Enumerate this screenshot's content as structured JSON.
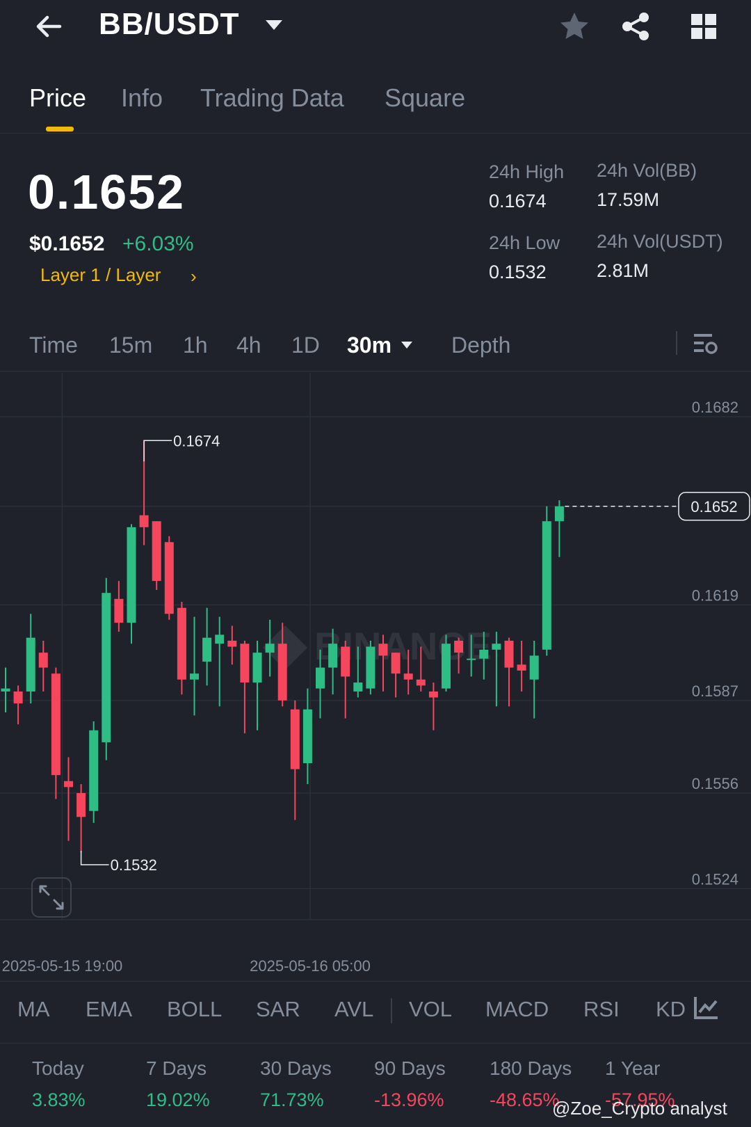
{
  "header": {
    "pair": "BB/USDT",
    "icons": [
      "back-arrow-icon",
      "caret-down-icon",
      "star-icon",
      "share-icon",
      "grid-icon"
    ]
  },
  "tabs": [
    {
      "label": "Price",
      "active": true
    },
    {
      "label": "Info",
      "active": false
    },
    {
      "label": "Trading Data",
      "active": false
    },
    {
      "label": "Square",
      "active": false
    }
  ],
  "ticker": {
    "last_price": "0.1652",
    "usd_price": "$0.1652",
    "change_pct": "+6.03%",
    "category": "Layer 1 / Layer",
    "category_arrow": "›",
    "high_label": "24h High",
    "high_value": "0.1674",
    "low_label": "24h Low",
    "low_value": "0.1532",
    "vol_base_label": "24h Vol(BB)",
    "vol_base_value": "17.59M",
    "vol_quote_label": "24h Vol(USDT)",
    "vol_quote_value": "2.81M"
  },
  "timeframes": {
    "items": [
      "Time",
      "15m",
      "1h",
      "4h",
      "1D"
    ],
    "active": "30m",
    "depth": "Depth"
  },
  "chart_data": {
    "type": "candlestick",
    "interval": "30m",
    "y_ticks": [
      "0.1682",
      "0.1652",
      "0.1619",
      "0.1587",
      "0.1556",
      "0.1524"
    ],
    "ylim": [
      0.1515,
      0.1692
    ],
    "x_ticks": [
      "2025-05-15 19:00",
      "2025-05-16 05:00"
    ],
    "high_marker": "0.1674",
    "low_marker": "0.1532",
    "current_price_tag": "0.1652",
    "watermark": "BINANCE",
    "colors": {
      "up": "#2ebd85",
      "down": "#f6465d",
      "grid": "#2b2f38",
      "axis_text": "#848e9c"
    },
    "candles": [
      {
        "o": 0.159,
        "h": 0.1598,
        "l": 0.1583,
        "c": 0.1591
      },
      {
        "o": 0.159,
        "h": 0.1592,
        "l": 0.1579,
        "c": 0.1586
      },
      {
        "o": 0.159,
        "h": 0.1616,
        "l": 0.1586,
        "c": 0.1608
      },
      {
        "o": 0.1603,
        "h": 0.1607,
        "l": 0.159,
        "c": 0.1598
      },
      {
        "o": 0.1596,
        "h": 0.1598,
        "l": 0.1554,
        "c": 0.1562
      },
      {
        "o": 0.156,
        "h": 0.1568,
        "l": 0.154,
        "c": 0.1558
      },
      {
        "o": 0.1556,
        "h": 0.1559,
        "l": 0.1536,
        "c": 0.1548
      },
      {
        "o": 0.155,
        "h": 0.158,
        "l": 0.1546,
        "c": 0.1577
      },
      {
        "o": 0.1573,
        "h": 0.1628,
        "l": 0.1567,
        "c": 0.1623
      },
      {
        "o": 0.1621,
        "h": 0.1627,
        "l": 0.161,
        "c": 0.1613
      },
      {
        "o": 0.1613,
        "h": 0.1646,
        "l": 0.1606,
        "c": 0.1645
      },
      {
        "o": 0.1649,
        "h": 0.1674,
        "l": 0.1639,
        "c": 0.1645
      },
      {
        "o": 0.1647,
        "h": 0.1647,
        "l": 0.1624,
        "c": 0.1627
      },
      {
        "o": 0.164,
        "h": 0.1642,
        "l": 0.1614,
        "c": 0.1616
      },
      {
        "o": 0.1618,
        "h": 0.162,
        "l": 0.1589,
        "c": 0.1594
      },
      {
        "o": 0.1594,
        "h": 0.1615,
        "l": 0.1582,
        "c": 0.1596
      },
      {
        "o": 0.16,
        "h": 0.1618,
        "l": 0.1592,
        "c": 0.1608
      },
      {
        "o": 0.1606,
        "h": 0.1615,
        "l": 0.1585,
        "c": 0.1609
      },
      {
        "o": 0.1607,
        "h": 0.1612,
        "l": 0.1599,
        "c": 0.1605
      },
      {
        "o": 0.1606,
        "h": 0.1607,
        "l": 0.1576,
        "c": 0.1593
      },
      {
        "o": 0.1593,
        "h": 0.1607,
        "l": 0.1577,
        "c": 0.1603
      },
      {
        "o": 0.1603,
        "h": 0.1614,
        "l": 0.1595,
        "c": 0.1606
      },
      {
        "o": 0.1606,
        "h": 0.1613,
        "l": 0.1585,
        "c": 0.1587
      },
      {
        "o": 0.1584,
        "h": 0.1587,
        "l": 0.1547,
        "c": 0.1564
      },
      {
        "o": 0.1566,
        "h": 0.1591,
        "l": 0.1559,
        "c": 0.1584
      },
      {
        "o": 0.1591,
        "h": 0.1604,
        "l": 0.1581,
        "c": 0.1598
      },
      {
        "o": 0.1598,
        "h": 0.1611,
        "l": 0.1589,
        "c": 0.1606
      },
      {
        "o": 0.1605,
        "h": 0.1607,
        "l": 0.1581,
        "c": 0.1595
      },
      {
        "o": 0.159,
        "h": 0.1605,
        "l": 0.1588,
        "c": 0.1593
      },
      {
        "o": 0.1591,
        "h": 0.1607,
        "l": 0.1589,
        "c": 0.1605
      },
      {
        "o": 0.1606,
        "h": 0.1609,
        "l": 0.159,
        "c": 0.1602
      },
      {
        "o": 0.1603,
        "h": 0.1603,
        "l": 0.1588,
        "c": 0.1596
      },
      {
        "o": 0.1596,
        "h": 0.1604,
        "l": 0.1589,
        "c": 0.1594
      },
      {
        "o": 0.1594,
        "h": 0.1605,
        "l": 0.159,
        "c": 0.1592
      },
      {
        "o": 0.159,
        "h": 0.1593,
        "l": 0.1577,
        "c": 0.1588
      },
      {
        "o": 0.1591,
        "h": 0.1609,
        "l": 0.159,
        "c": 0.1606
      },
      {
        "o": 0.1607,
        "h": 0.1608,
        "l": 0.1596,
        "c": 0.1603
      },
      {
        "o": 0.1601,
        "h": 0.1609,
        "l": 0.1595,
        "c": 0.1601
      },
      {
        "o": 0.1601,
        "h": 0.161,
        "l": 0.1594,
        "c": 0.1604
      },
      {
        "o": 0.1604,
        "h": 0.161,
        "l": 0.1585,
        "c": 0.1606
      },
      {
        "o": 0.1607,
        "h": 0.1608,
        "l": 0.1585,
        "c": 0.1598
      },
      {
        "o": 0.1599,
        "h": 0.1607,
        "l": 0.159,
        "c": 0.1597
      },
      {
        "o": 0.1594,
        "h": 0.1607,
        "l": 0.1581,
        "c": 0.1602
      },
      {
        "o": 0.1604,
        "h": 0.1652,
        "l": 0.1602,
        "c": 0.1647
      },
      {
        "o": 0.1647,
        "h": 0.1654,
        "l": 0.1635,
        "c": 0.1652
      }
    ]
  },
  "indicators": {
    "items": [
      "MA",
      "EMA",
      "BOLL",
      "SAR",
      "AVL",
      "VOL",
      "MACD",
      "RSI",
      "KD"
    ]
  },
  "performance": [
    {
      "label": "Today",
      "value": "3.83%",
      "dir": "up"
    },
    {
      "label": "7 Days",
      "value": "19.02%",
      "dir": "up"
    },
    {
      "label": "30 Days",
      "value": "71.73%",
      "dir": "up"
    },
    {
      "label": "90 Days",
      "value": "-13.96%",
      "dir": "down"
    },
    {
      "label": "180 Days",
      "value": "-48.65%",
      "dir": "down"
    },
    {
      "label": "1 Year",
      "value": "-57.95%",
      "dir": "down"
    }
  ],
  "watermark_credit": "@Zoe_Crypto analyst"
}
